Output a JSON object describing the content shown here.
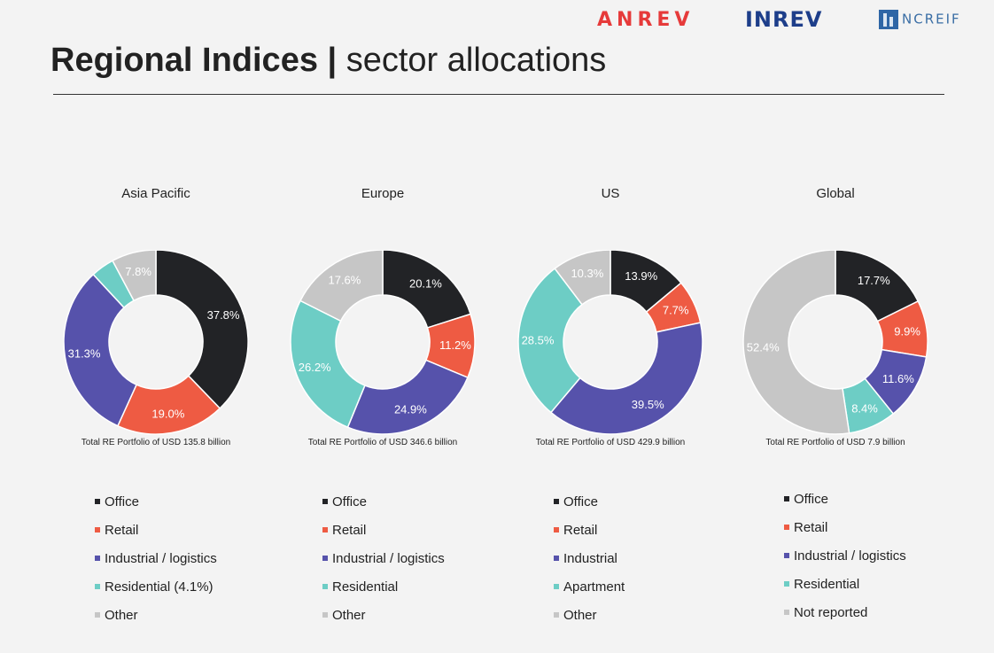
{
  "logos": {
    "anrev": "ANREV",
    "inrev": "INREV",
    "ncreif": "NCREIF"
  },
  "title": {
    "bold": "Regional Indices",
    "separator": " | ",
    "light": "sector allocations"
  },
  "colors": {
    "office": "#222326",
    "retail": "#ee5b43",
    "industrial": "#5652ab",
    "residential": "#6dcdc5",
    "other": "#c6c6c6",
    "background": "#f3f3f3"
  },
  "chart_data": [
    {
      "type": "pie",
      "title": "Asia Pacific",
      "total_label": "Total RE Portfolio of USD 135.8 billion",
      "slices": [
        {
          "name": "Office",
          "value": 37.8,
          "label": "37.8%"
        },
        {
          "name": "Retail",
          "value": 19.0,
          "label": "19.0%"
        },
        {
          "name": "Industrial / logistics",
          "value": 31.3,
          "label": "31.3%"
        },
        {
          "name": "Residential (4.1%)",
          "value": 4.1,
          "label": ""
        },
        {
          "name": "Other",
          "value": 7.8,
          "label": "7.8%"
        }
      ]
    },
    {
      "type": "pie",
      "title": "Europe",
      "total_label": "Total RE Portfolio of USD 346.6 billion",
      "slices": [
        {
          "name": "Office",
          "value": 20.1,
          "label": "20.1%"
        },
        {
          "name": "Retail",
          "value": 11.2,
          "label": "11.2%"
        },
        {
          "name": "Industrial / logistics",
          "value": 24.9,
          "label": "24.9%"
        },
        {
          "name": "Residential",
          "value": 26.2,
          "label": "26.2%"
        },
        {
          "name": "Other",
          "value": 17.6,
          "label": "17.6%"
        }
      ]
    },
    {
      "type": "pie",
      "title": "US",
      "total_label": "Total RE Portfolio of USD 429.9 billion",
      "slices": [
        {
          "name": "Office",
          "value": 13.9,
          "label": "13.9%"
        },
        {
          "name": "Retail",
          "value": 7.7,
          "label": "7.7%"
        },
        {
          "name": "Industrial",
          "value": 39.5,
          "label": "39.5%"
        },
        {
          "name": "Apartment",
          "value": 28.5,
          "label": "28.5%"
        },
        {
          "name": "Other",
          "value": 10.3,
          "label": "10.3%"
        }
      ]
    },
    {
      "type": "pie",
      "title": "Global",
      "total_label": "Total RE Portfolio of USD 7.9 billion",
      "slices": [
        {
          "name": "Office",
          "value": 17.7,
          "label": "17.7%"
        },
        {
          "name": "Retail",
          "value": 9.9,
          "label": "9.9%"
        },
        {
          "name": "Industrial / logistics",
          "value": 11.6,
          "label": "11.6%"
        },
        {
          "name": "Residential",
          "value": 8.4,
          "label": "8.4%"
        },
        {
          "name": "Not reported",
          "value": 52.4,
          "label": "52.4%"
        }
      ]
    }
  ]
}
